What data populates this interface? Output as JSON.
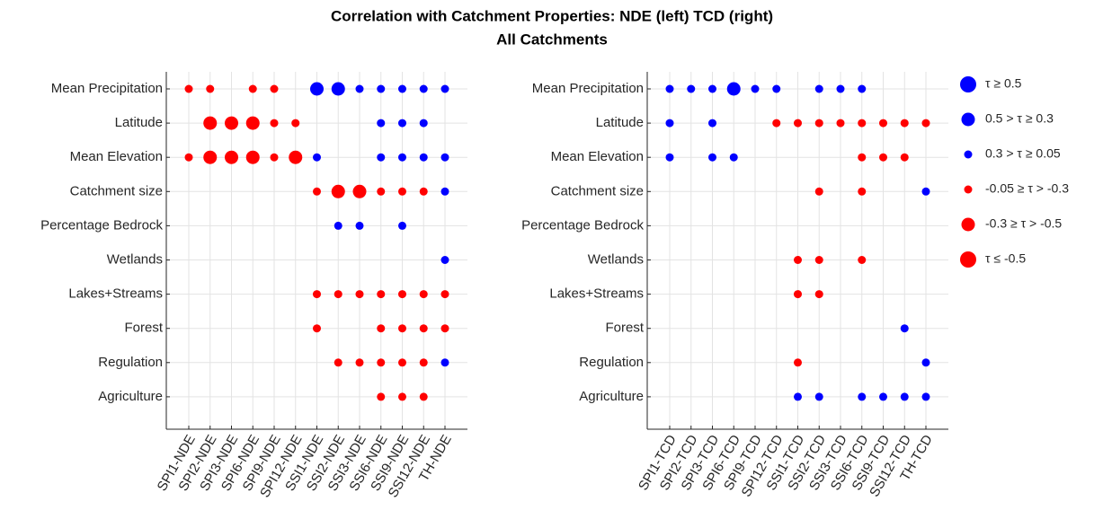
{
  "chart_data": {
    "type": "dot-matrix",
    "title": "Correlation with Catchment Properties: NDE (left) TCD (right)",
    "subtitle": "All Catchments",
    "grid": true,
    "legend_position": "right",
    "legend": [
      {
        "label": "τ ≥ 0.5",
        "color": "#0000ff"
      },
      {
        "label": "0.5 > τ ≥ 0.3",
        "color": "#0000ff"
      },
      {
        "label": "0.3 > τ ≥ 0.05",
        "color": "#0000ff"
      },
      {
        "label": "-0.05 ≥ τ > -0.3",
        "color": "#ff0000"
      },
      {
        "label": "-0.3 ≥ τ > -0.5",
        "color": "#ff0000"
      },
      {
        "label": "τ ≤ -0.5",
        "color": "#ff0000"
      }
    ],
    "row_labels": [
      "Mean Precipitation",
      "Latitude",
      "Mean Elevation",
      "Catchment size",
      "Percentage Bedrock",
      "Wetlands",
      "Lakes+Streams",
      "Forest",
      "Regulation",
      "Agriculture"
    ],
    "panels": [
      {
        "columns": [
          "SPI1-NDE",
          "SPI2-NDE",
          "SPI3-NDE",
          "SPI6-NDE",
          "SPI9-NDE",
          "SPI12-NDE",
          "SSI1-NDE",
          "SSI2-NDE",
          "SSI3-NDE",
          "SSI6-NDE",
          "SSI9-NDE",
          "SSI12-NDE",
          "TH-NDE"
        ],
        "cells": [
          [
            3,
            3,
            null,
            3,
            3,
            null,
            1,
            1,
            2,
            2,
            2,
            2,
            2
          ],
          [
            null,
            4,
            4,
            4,
            3,
            3,
            null,
            null,
            null,
            2,
            2,
            2,
            null
          ],
          [
            3,
            4,
            4,
            4,
            3,
            4,
            2,
            null,
            null,
            2,
            2,
            2,
            2
          ],
          [
            null,
            null,
            null,
            null,
            null,
            null,
            3,
            4,
            4,
            3,
            3,
            3,
            2
          ],
          [
            null,
            null,
            null,
            null,
            null,
            null,
            null,
            2,
            2,
            null,
            2,
            null,
            null
          ],
          [
            null,
            null,
            null,
            null,
            null,
            null,
            null,
            null,
            null,
            null,
            null,
            null,
            2
          ],
          [
            null,
            null,
            null,
            null,
            null,
            null,
            3,
            3,
            3,
            3,
            3,
            3,
            3
          ],
          [
            null,
            null,
            null,
            null,
            null,
            null,
            3,
            null,
            null,
            3,
            3,
            3,
            3
          ],
          [
            null,
            null,
            null,
            null,
            null,
            null,
            null,
            3,
            3,
            3,
            3,
            3,
            2
          ],
          [
            null,
            null,
            null,
            null,
            null,
            null,
            null,
            null,
            null,
            3,
            3,
            3,
            null
          ]
        ]
      },
      {
        "columns": [
          "SPI1-TCD",
          "SPI2-TCD",
          "SPI3-TCD",
          "SPI6-TCD",
          "SPI9-TCD",
          "SPI12-TCD",
          "SSI1-TCD",
          "SSI2-TCD",
          "SSI3-TCD",
          "SSI6-TCD",
          "SSI9-TCD",
          "SSI12-TCD",
          "TH-TCD"
        ],
        "cells": [
          [
            2,
            2,
            2,
            1,
            2,
            2,
            null,
            2,
            2,
            2,
            null,
            null,
            null
          ],
          [
            2,
            null,
            2,
            null,
            null,
            3,
            3,
            3,
            3,
            3,
            3,
            3,
            3
          ],
          [
            2,
            null,
            2,
            2,
            null,
            null,
            null,
            null,
            null,
            3,
            3,
            3,
            null
          ],
          [
            null,
            null,
            null,
            null,
            null,
            null,
            null,
            3,
            null,
            3,
            null,
            null,
            2
          ],
          [
            null,
            null,
            null,
            null,
            null,
            null,
            null,
            null,
            null,
            null,
            null,
            null,
            null
          ],
          [
            null,
            null,
            null,
            null,
            null,
            null,
            3,
            3,
            null,
            3,
            null,
            null,
            null
          ],
          [
            null,
            null,
            null,
            null,
            null,
            null,
            3,
            3,
            null,
            null,
            null,
            null,
            null
          ],
          [
            null,
            null,
            null,
            null,
            null,
            null,
            null,
            null,
            null,
            null,
            null,
            2,
            null
          ],
          [
            null,
            null,
            null,
            null,
            null,
            null,
            3,
            null,
            null,
            null,
            null,
            null,
            2
          ],
          [
            null,
            null,
            null,
            null,
            null,
            null,
            2,
            2,
            null,
            2,
            2,
            2,
            2
          ]
        ]
      }
    ]
  }
}
